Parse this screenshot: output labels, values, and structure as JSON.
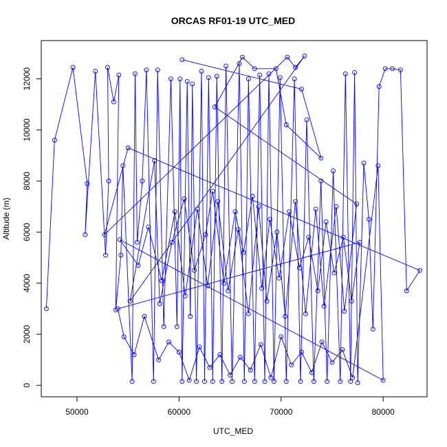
{
  "chart_data": {
    "type": "line",
    "title": "ORCAS RF01-19 UTC_MED",
    "xlabel": "UTC_MED",
    "ylabel": "Altitude (m)",
    "xlim": [
      46500,
      84300
    ],
    "ylim": [
      -450,
      13500
    ],
    "x_ticks": [
      50000,
      60000,
      70000,
      80000
    ],
    "y_ticks": [
      0,
      2000,
      4000,
      6000,
      8000,
      10000,
      12000
    ],
    "grid": false,
    "legend": "none",
    "colors": {
      "series": "#0000ff",
      "axis": "#000000"
    },
    "markers": "open-circle",
    "series": [
      {
        "points": [
          [
            47000,
            3000
          ],
          [
            47800,
            9600
          ],
          [
            49600,
            12450
          ],
          [
            51000,
            7900
          ],
          [
            50800,
            5900
          ],
          [
            51800,
            12300
          ],
          [
            52800,
            5100
          ],
          [
            53100,
            8000
          ],
          [
            53000,
            12450
          ],
          [
            53600,
            11100
          ],
          [
            54100,
            12150
          ],
          [
            53800,
            2950
          ],
          [
            54300,
            5100
          ],
          [
            54500,
            8600
          ],
          [
            55400,
            150
          ],
          [
            55700,
            12200
          ],
          [
            55900,
            5600
          ],
          [
            56400,
            8000
          ],
          [
            56800,
            12350
          ],
          [
            57500,
            150
          ],
          [
            57900,
            12350
          ],
          [
            58500,
            2300
          ],
          [
            59200,
            12000
          ],
          [
            59800,
            2300
          ],
          [
            60100,
            12000
          ],
          [
            60300,
            150
          ],
          [
            60800,
            11900
          ],
          [
            61100,
            2700
          ],
          [
            61300,
            11800
          ],
          [
            61700,
            150
          ],
          [
            62200,
            12300
          ],
          [
            62500,
            150
          ],
          [
            62900,
            12050
          ],
          [
            63300,
            150
          ],
          [
            63700,
            12100
          ],
          [
            64200,
            150
          ],
          [
            64600,
            12500
          ],
          [
            65200,
            150
          ],
          [
            65900,
            12600
          ],
          [
            66400,
            150
          ],
          [
            66800,
            12000
          ],
          [
            67400,
            150
          ],
          [
            67900,
            12150
          ],
          [
            68400,
            150
          ],
          [
            68800,
            12200
          ],
          [
            69300,
            150
          ],
          [
            69900,
            12050
          ],
          [
            70500,
            150
          ],
          [
            71300,
            12000
          ],
          [
            71900,
            150
          ],
          [
            72500,
            10400
          ],
          [
            73200,
            150
          ],
          [
            73900,
            8000
          ],
          [
            74500,
            150
          ],
          [
            75100,
            8400
          ],
          [
            75800,
            150
          ],
          [
            76300,
            12200
          ],
          [
            76800,
            150
          ],
          [
            77200,
            12250
          ],
          [
            77500,
            100
          ],
          [
            78100,
            8700
          ],
          [
            78600,
            6500
          ],
          [
            79000,
            2200
          ],
          [
            79600,
            11700
          ],
          [
            80200,
            12400
          ],
          [
            80900,
            12400
          ],
          [
            81700,
            12350
          ],
          [
            82300,
            3700
          ],
          [
            83600,
            4500
          ],
          [
            55000,
            9300
          ],
          [
            52700,
            5900
          ],
          [
            70600,
            12850
          ],
          [
            71400,
            12450
          ],
          [
            72300,
            12900
          ],
          [
            55200,
            3300
          ],
          [
            57600,
            8800
          ],
          [
            58100,
            3200
          ],
          [
            59300,
            5600
          ],
          [
            60500,
            7300
          ],
          [
            61500,
            4500
          ],
          [
            62600,
            5900
          ],
          [
            63300,
            7600
          ],
          [
            64400,
            4000
          ],
          [
            65500,
            6800
          ],
          [
            66300,
            5200
          ],
          [
            67200,
            7400
          ],
          [
            68100,
            3800
          ],
          [
            68900,
            6500
          ],
          [
            69800,
            4200
          ],
          [
            70800,
            6800
          ],
          [
            71800,
            4600
          ],
          [
            72700,
            5800
          ],
          [
            73600,
            3700
          ],
          [
            74400,
            6400
          ],
          [
            75200,
            4400
          ],
          [
            76100,
            5800
          ],
          [
            76900,
            3300
          ],
          [
            77700,
            5600
          ],
          [
            54000,
            3000
          ],
          [
            54600,
            1900
          ],
          [
            55600,
            1200
          ],
          [
            56600,
            2700
          ],
          [
            58000,
            1000
          ],
          [
            59000,
            1700
          ],
          [
            60000,
            1300
          ],
          [
            61000,
            200
          ],
          [
            62000,
            1500
          ],
          [
            63000,
            700
          ],
          [
            64000,
            1200
          ],
          [
            65000,
            400
          ],
          [
            66000,
            1100
          ],
          [
            67000,
            600
          ],
          [
            68000,
            1600
          ],
          [
            69000,
            300
          ],
          [
            70000,
            1900
          ],
          [
            71000,
            800
          ],
          [
            72000,
            1300
          ],
          [
            73000,
            500
          ],
          [
            74000,
            1700
          ],
          [
            75000,
            900
          ],
          [
            76000,
            1400
          ],
          [
            77000,
            300
          ],
          [
            79500,
            8600
          ],
          [
            80000,
            200
          ],
          [
            54200,
            5700
          ],
          [
            56000,
            4700
          ],
          [
            57000,
            6200
          ],
          [
            58300,
            4100
          ],
          [
            59600,
            6800
          ],
          [
            60600,
            3500
          ],
          [
            61800,
            6900
          ],
          [
            62800,
            3900
          ],
          [
            63800,
            7200
          ],
          [
            64800,
            3700
          ],
          [
            65800,
            6100
          ],
          [
            66800,
            2800
          ],
          [
            67800,
            7000
          ],
          [
            68600,
            3300
          ],
          [
            69600,
            6000
          ],
          [
            70400,
            2700
          ],
          [
            71400,
            7200
          ],
          [
            72400,
            2800
          ],
          [
            73400,
            6900
          ],
          [
            74200,
            3100
          ],
          [
            75400,
            7000
          ],
          [
            76200,
            2900
          ],
          [
            77400,
            7100
          ],
          [
            63500,
            10900
          ],
          [
            66200,
            12850
          ],
          [
            67400,
            12400
          ],
          [
            69500,
            12400
          ],
          [
            70500,
            10200
          ],
          [
            73900,
            8900
          ],
          [
            72000,
            11600
          ],
          [
            60300,
            12750
          ]
        ]
      }
    ]
  }
}
